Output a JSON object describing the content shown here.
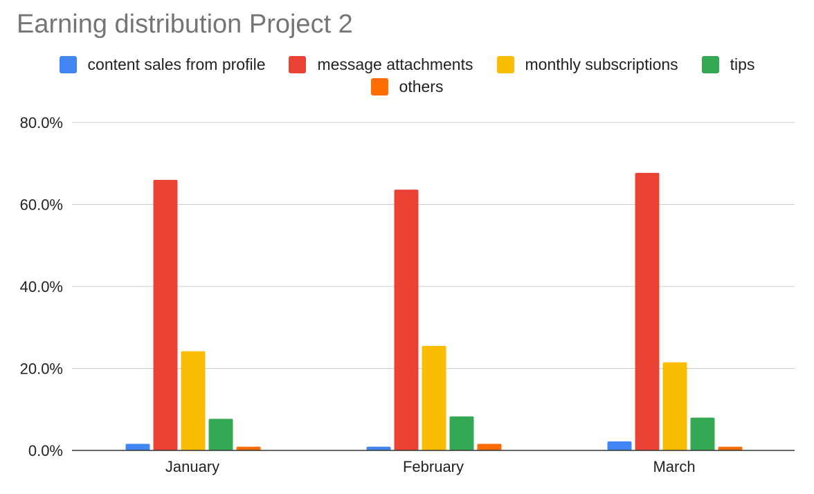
{
  "chart_data": {
    "type": "bar",
    "title": "Earning distribution Project 2",
    "categories": [
      "January",
      "February",
      "March"
    ],
    "series": [
      {
        "name": "content sales from profile",
        "color": "#4285F4",
        "values": [
          1.6,
          0.9,
          2.2
        ]
      },
      {
        "name": "message attachments",
        "color": "#EA4335",
        "values": [
          66.0,
          63.6,
          67.7
        ]
      },
      {
        "name": "monthly subscriptions",
        "color": "#FBBC04",
        "values": [
          24.2,
          25.5,
          21.5
        ]
      },
      {
        "name": "tips",
        "color": "#34A853",
        "values": [
          7.7,
          8.3,
          8.0
        ]
      },
      {
        "name": "others",
        "color": "#FF6D01",
        "values": [
          0.9,
          1.6,
          0.9
        ]
      }
    ],
    "ylim": [
      0,
      80
    ],
    "yticks": [
      "0.0%",
      "20.0%",
      "40.0%",
      "60.0%",
      "80.0%"
    ],
    "ytick_values": [
      0,
      20,
      40,
      60,
      80
    ],
    "xlabel": "",
    "ylabel": "",
    "grid": true,
    "legend_position": "top"
  }
}
